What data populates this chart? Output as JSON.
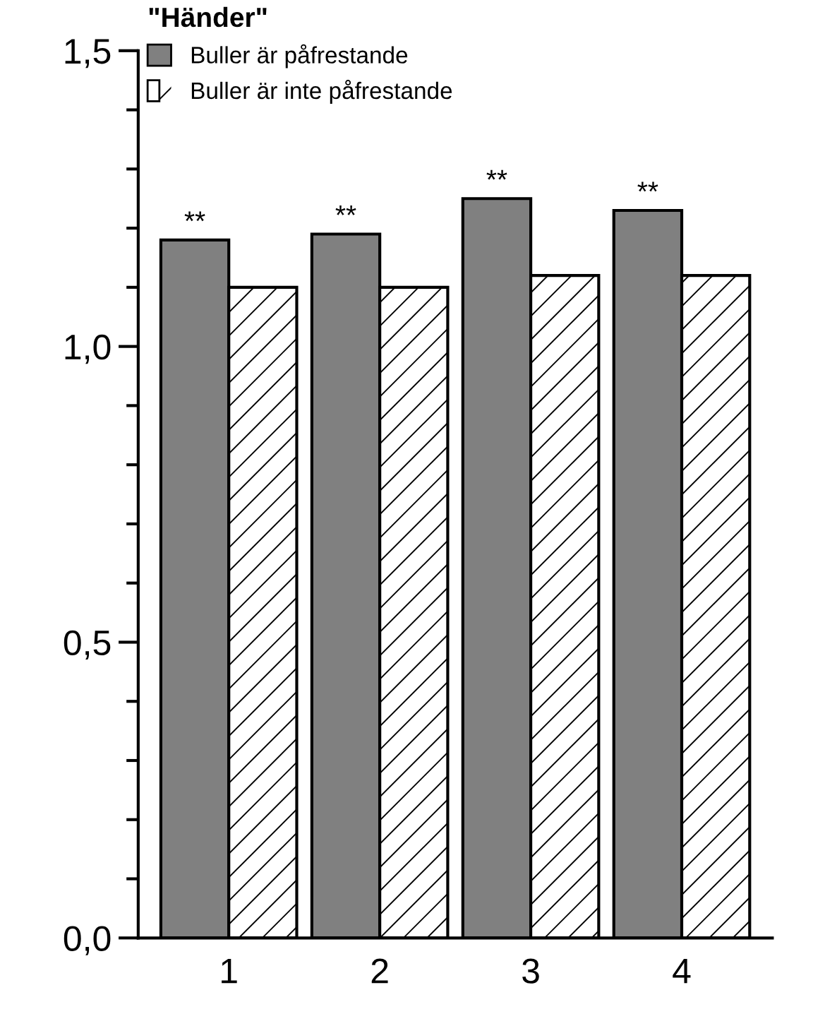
{
  "chart_data": {
    "type": "bar",
    "categories": [
      "1",
      "2",
      "3",
      "4"
    ],
    "series": [
      {
        "name": "Buller är påfrestande",
        "color": "#808080",
        "values": [
          1.18,
          1.19,
          1.25,
          1.23
        ]
      },
      {
        "name": "Buller är inte påfrestande",
        "color": "#ffffff",
        "values": [
          1.1,
          1.1,
          1.12,
          1.12
        ]
      }
    ],
    "legend_title": "\"Händer\"",
    "legend": "top left",
    "ylim": [
      0,
      1.5
    ],
    "yticks": [
      {
        "value": 0,
        "label": "0,0"
      },
      {
        "value": 0.5,
        "label": "0,5"
      },
      {
        "value": 1.0,
        "label": "1,0"
      },
      {
        "value": 1.5,
        "label": "1,5"
      }
    ],
    "grid": false,
    "annotations": [
      {
        "text": "**",
        "x": "1",
        "y": 1.18
      },
      {
        "text": "**",
        "x": "2",
        "y": 1.19
      },
      {
        "text": "**",
        "x": "3",
        "y": 1.25
      },
      {
        "text": "**",
        "x": "4",
        "y": 1.23
      }
    ]
  }
}
